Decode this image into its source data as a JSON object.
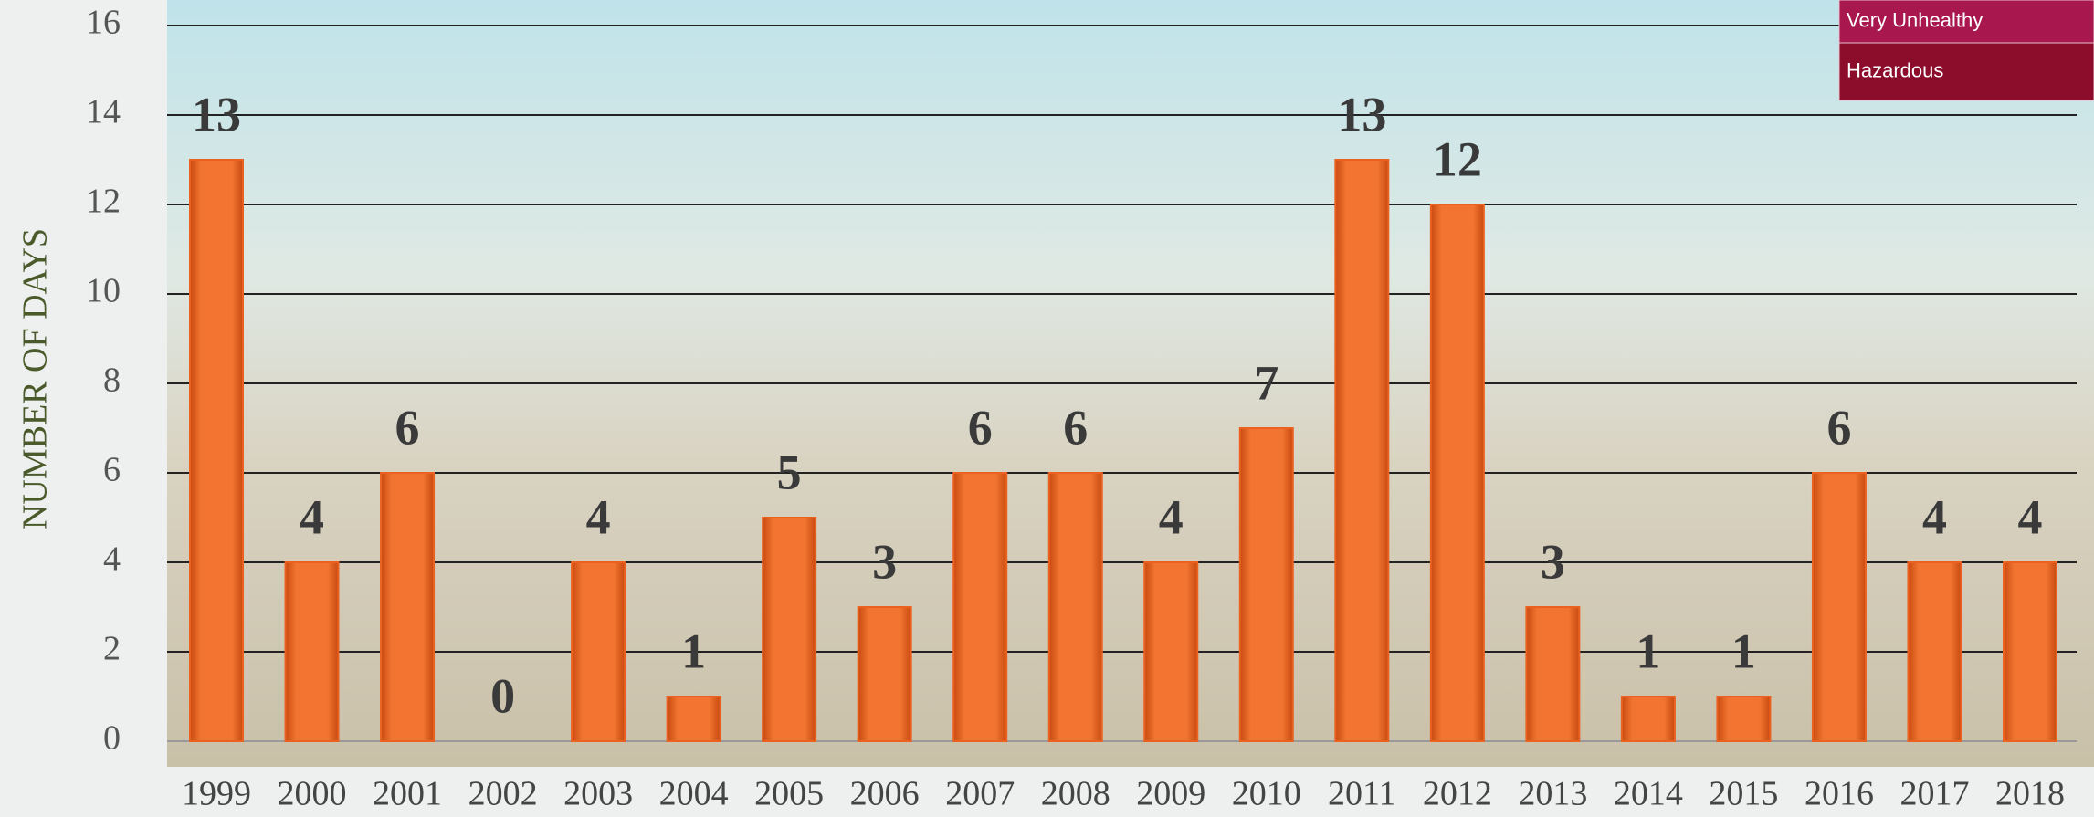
{
  "chart_data": {
    "type": "bar",
    "y_label": "NUMBER OF DAYS",
    "categories": [
      "1999",
      "2000",
      "2001",
      "2002",
      "2003",
      "2004",
      "2005",
      "2006",
      "2007",
      "2008",
      "2009",
      "2010",
      "2011",
      "2012",
      "2013",
      "2014",
      "2015",
      "2016",
      "2017",
      "2018"
    ],
    "values": [
      13,
      4,
      6,
      0,
      4,
      1,
      5,
      3,
      6,
      6,
      4,
      7,
      13,
      12,
      3,
      1,
      1,
      6,
      4,
      4
    ],
    "color": "#ea6120",
    "ylim": [
      0,
      16
    ],
    "yticks": [
      0,
      2,
      4,
      6,
      8,
      10,
      12,
      14,
      16
    ],
    "grid": true,
    "legend": [
      {
        "label": "Very Unhealthy",
        "color": "#a8184f"
      },
      {
        "label": "Hazardous",
        "color": "#8c0d2b"
      }
    ]
  }
}
